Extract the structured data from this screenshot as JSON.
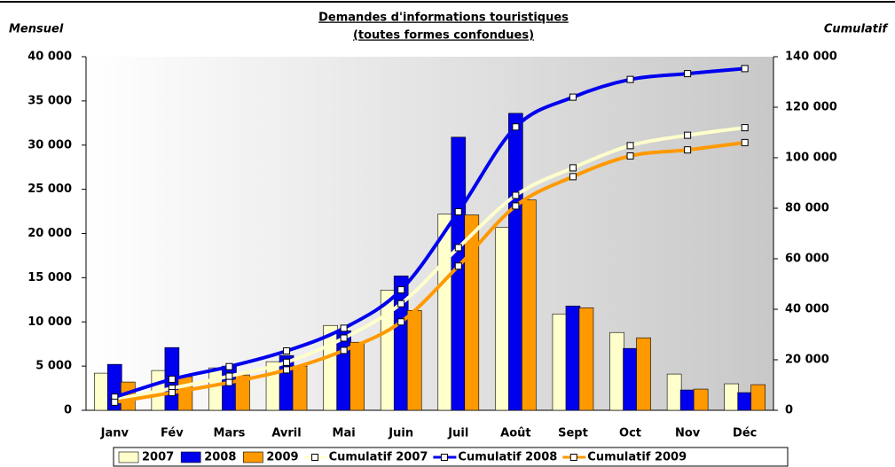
{
  "chart_data": {
    "type": "bar",
    "title": "Demandes d'informations touristiques",
    "subtitle": "(toutes formes confondues)",
    "y_label": "Mensuel",
    "y2_label": "Cumulatif",
    "categories": [
      "Janv",
      "Fév",
      "Mars",
      "Avril",
      "Mai",
      "Juin",
      "Juil",
      "Août",
      "Sept",
      "Oct",
      "Nov",
      "Déc"
    ],
    "series": [
      {
        "name": "2007",
        "type": "bar",
        "color": "#ffffcc",
        "values": [
          4200,
          4500,
          4800,
          5500,
          9600,
          13600,
          22200,
          20700,
          10900,
          8800,
          4100,
          3000
        ]
      },
      {
        "name": "2008",
        "type": "bar",
        "color": "#0000ee",
        "values": [
          5200,
          7100,
          5000,
          6200,
          9000,
          15200,
          30900,
          33600,
          11800,
          7000,
          2300,
          2000
        ]
      },
      {
        "name": "2009",
        "type": "bar",
        "color": "#ff9900",
        "values": [
          3200,
          3800,
          4000,
          5000,
          7700,
          11300,
          22100,
          23800,
          11600,
          8200,
          2400,
          2900
        ]
      },
      {
        "name": "Cumulatif 2007",
        "type": "line",
        "axis": "y2",
        "color": "#ffffcc",
        "values": [
          4200,
          8700,
          13500,
          19000,
          28600,
          42200,
          64400,
          85100,
          96000,
          104800,
          108900,
          111900
        ]
      },
      {
        "name": "Cumulatif 2008",
        "type": "line",
        "axis": "y2",
        "color": "#0000ee",
        "values": [
          5200,
          12300,
          17300,
          23500,
          32500,
          47700,
          78600,
          112200,
          124000,
          131000,
          133300,
          135300
        ]
      },
      {
        "name": "Cumulatif 2009",
        "type": "line",
        "axis": "y2",
        "color": "#ff9900",
        "values": [
          3200,
          7000,
          11000,
          16000,
          23700,
          35000,
          57100,
          80900,
          92500,
          100700,
          103100,
          106000
        ]
      }
    ],
    "ylim": [
      0,
      40000
    ],
    "yticks": [
      0,
      {
        "value": 5000,
        "label": "5 000"
      },
      {
        "value": 10000,
        "label": "10 000"
      },
      {
        "value": 15000,
        "label": "15 000"
      },
      {
        "value": 20000,
        "label": "20 000"
      },
      {
        "value": 25000,
        "label": "25 000"
      },
      {
        "value": 30000,
        "label": "30 000"
      },
      {
        "value": 35000,
        "label": "35 000"
      },
      {
        "value": 40000,
        "label": "40 000"
      }
    ],
    "y2lim": [
      0,
      140000
    ],
    "y2ticks": [
      0,
      {
        "value": 20000,
        "label": "20 000"
      },
      {
        "value": 40000,
        "label": "40 000"
      },
      {
        "value": 60000,
        "label": "60 000"
      },
      {
        "value": 80000,
        "label": "80 000"
      },
      {
        "value": 100000,
        "label": "100 000"
      },
      {
        "value": 120000,
        "label": "120 000"
      },
      {
        "value": 140000,
        "label": "140 000"
      }
    ],
    "legend": "bottom"
  }
}
